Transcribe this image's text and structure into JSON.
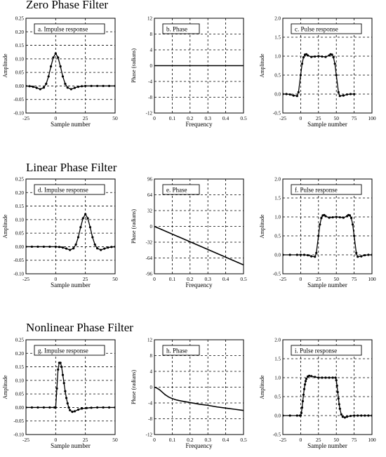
{
  "sections": [
    {
      "title": "Zero Phase Filter"
    },
    {
      "title": "Linear Phase Filter"
    },
    {
      "title": "Nonlinear Phase Filter"
    }
  ],
  "chart_data": [
    {
      "id": "a",
      "type": "scatter",
      "label": "a.  Impulse response",
      "xlabel": "Sample number",
      "ylabel": "Amplitude",
      "xlim": [
        -25,
        50
      ],
      "xticks": [
        "-25",
        "0",
        "25",
        "50"
      ],
      "ylim": [
        -0.1,
        0.25
      ],
      "yticks": [
        "-0.10",
        "-0.05",
        "0.00",
        "0.05",
        "0.10",
        "0.15",
        "0.20",
        "0.25"
      ],
      "grid": "dashed",
      "x": [
        -25,
        -22,
        -19,
        -16,
        -13,
        -10,
        -8,
        -6,
        -4,
        -2,
        0,
        2,
        4,
        6,
        8,
        10,
        13,
        16,
        19,
        22,
        25,
        30,
        35,
        40,
        45,
        50
      ],
      "y": [
        0.0,
        -0.001,
        -0.003,
        -0.007,
        -0.012,
        -0.006,
        0.008,
        0.035,
        0.072,
        0.105,
        0.12,
        0.105,
        0.072,
        0.035,
        0.008,
        -0.006,
        -0.012,
        -0.007,
        -0.003,
        -0.001,
        0.0,
        0.0,
        0.0,
        0.0,
        0.0,
        0.0
      ]
    },
    {
      "id": "b",
      "type": "line",
      "label": "b.  Phase",
      "xlabel": "Frequency",
      "ylabel": "Phase (radians)",
      "xlim": [
        0,
        0.5
      ],
      "xticks": [
        "0",
        "0.1",
        "0.2",
        "0.3",
        "0.4",
        "0.5"
      ],
      "ylim": [
        -12,
        12
      ],
      "yticks": [
        "-12",
        "-8",
        "-4",
        "0",
        "4",
        "8",
        "12"
      ],
      "grid": "dashed",
      "x": [
        0,
        0.5
      ],
      "y": [
        0,
        0
      ]
    },
    {
      "id": "c",
      "type": "scatter",
      "label": "c.  Pulse response",
      "xlabel": "Sample number",
      "ylabel": "Amplitude",
      "xlim": [
        -25,
        100
      ],
      "xticks": [
        "-25",
        "0",
        "25",
        "50",
        "75",
        "100"
      ],
      "ylim": [
        -0.5,
        2.0
      ],
      "yticks": [
        "-0.5",
        "0.0",
        "0.5",
        "1.0",
        "1.5",
        "2.0"
      ],
      "grid": "dashed",
      "x": [
        -25,
        -20,
        -15,
        -10,
        -5,
        -3,
        0,
        2,
        4,
        6,
        8,
        10,
        15,
        20,
        25,
        30,
        35,
        40,
        42,
        44,
        46,
        48,
        50,
        53,
        55,
        60,
        65,
        70,
        75
      ],
      "y": [
        0.0,
        0.0,
        -0.01,
        -0.04,
        -0.05,
        0.05,
        0.5,
        0.8,
        0.97,
        1.04,
        1.05,
        1.02,
        0.98,
        0.99,
        1.0,
        0.99,
        0.98,
        1.02,
        1.05,
        1.04,
        0.97,
        0.8,
        0.5,
        0.05,
        -0.05,
        -0.04,
        -0.01,
        0.0,
        0.0
      ]
    },
    {
      "id": "d",
      "type": "scatter",
      "label": "d.  Impulse response",
      "xlabel": "Sample number",
      "ylabel": "Amplitude",
      "xlim": [
        -25,
        50
      ],
      "xticks": [
        "-25",
        "0",
        "25",
        "50"
      ],
      "ylim": [
        -0.1,
        0.25
      ],
      "yticks": [
        "-0.10",
        "-0.05",
        "0.00",
        "0.05",
        "0.10",
        "0.15",
        "0.20",
        "0.25"
      ],
      "grid": "dashed",
      "x": [
        -25,
        -20,
        -15,
        -10,
        -5,
        0,
        3,
        6,
        9,
        12,
        15,
        17,
        19,
        21,
        23,
        25,
        27,
        29,
        31,
        33,
        35,
        38,
        41,
        44,
        47,
        50
      ],
      "y": [
        0.0,
        0.0,
        0.0,
        0.0,
        0.0,
        0.0,
        -0.001,
        -0.003,
        -0.007,
        -0.012,
        -0.006,
        0.008,
        0.035,
        0.072,
        0.105,
        0.12,
        0.105,
        0.072,
        0.035,
        0.008,
        -0.006,
        -0.012,
        -0.007,
        -0.003,
        -0.001,
        0.0
      ]
    },
    {
      "id": "e",
      "type": "line",
      "label": "e.  Phase",
      "xlabel": "Frequency",
      "ylabel": "Phase (radians)",
      "xlim": [
        0,
        0.5
      ],
      "xticks": [
        "0",
        "0.1",
        "0.2",
        "0.3",
        "0.4",
        "0.5"
      ],
      "ylim": [
        -96,
        96
      ],
      "yticks": [
        "-96",
        "-64",
        "-32",
        "0",
        "32",
        "64",
        "96"
      ],
      "grid": "dashed",
      "x": [
        0,
        0.5
      ],
      "y": [
        0,
        -78
      ]
    },
    {
      "id": "f",
      "type": "scatter",
      "label": "f.  Pulse response",
      "xlabel": "Sample number",
      "ylabel": "Amplitude",
      "xlim": [
        -25,
        100
      ],
      "xticks": [
        "-25",
        "0",
        "25",
        "50",
        "75",
        "100"
      ],
      "ylim": [
        -0.5,
        2.0
      ],
      "yticks": [
        "-0.5",
        "0.0",
        "0.5",
        "1.0",
        "1.5",
        "2.0"
      ],
      "grid": "dashed",
      "x": [
        -25,
        -15,
        -5,
        0,
        5,
        10,
        15,
        20,
        22,
        25,
        27,
        29,
        31,
        33,
        35,
        40,
        45,
        50,
        55,
        60,
        65,
        67,
        69,
        71,
        73,
        75,
        78,
        80,
        85,
        90,
        95,
        100
      ],
      "y": [
        0.0,
        0.0,
        0.0,
        0.0,
        0.0,
        -0.01,
        -0.04,
        -0.05,
        0.05,
        0.5,
        0.8,
        0.97,
        1.04,
        1.05,
        1.02,
        0.98,
        0.99,
        1.0,
        0.99,
        0.98,
        1.02,
        1.05,
        1.04,
        0.97,
        0.8,
        0.5,
        0.05,
        -0.05,
        -0.04,
        -0.01,
        0.0,
        0.0
      ]
    },
    {
      "id": "g",
      "type": "scatter",
      "label": "g.  Impulse response",
      "xlabel": "Sample number",
      "ylabel": "Amplitude",
      "xlim": [
        -25,
        50
      ],
      "xticks": [
        "-25",
        "0",
        "25",
        "50"
      ],
      "ylim": [
        -0.1,
        0.25
      ],
      "yticks": [
        "-0.10",
        "-0.05",
        "0.00",
        "0.05",
        "0.10",
        "0.15",
        "0.20",
        "0.25"
      ],
      "grid": "dashed",
      "x": [
        -25,
        -20,
        -15,
        -10,
        -5,
        -1,
        0,
        1,
        2,
        3,
        4,
        5,
        6,
        7,
        8,
        9,
        10,
        11,
        12,
        14,
        16,
        19,
        22,
        26,
        30,
        35,
        40,
        45,
        50
      ],
      "y": [
        0.0,
        0.0,
        0.0,
        0.0,
        0.0,
        0.0,
        0.0,
        0.07,
        0.14,
        0.165,
        0.165,
        0.15,
        0.12,
        0.09,
        0.06,
        0.035,
        0.015,
        0.0,
        -0.01,
        -0.016,
        -0.014,
        -0.008,
        -0.004,
        -0.002,
        -0.001,
        0.0,
        0.0,
        0.0,
        0.0
      ]
    },
    {
      "id": "h",
      "type": "line",
      "label": "h.  Phase",
      "xlabel": "Frequency",
      "ylabel": "Phase (radians)",
      "xlim": [
        0,
        0.5
      ],
      "xticks": [
        "0",
        "0.1",
        "0.2",
        "0.3",
        "0.4",
        "0.5"
      ],
      "ylim": [
        -12,
        12
      ],
      "yticks": [
        "-12",
        "-8",
        "-4",
        "0",
        "4",
        "8",
        "12"
      ],
      "grid": "dashed",
      "x": [
        0,
        0.01,
        0.02,
        0.03,
        0.04,
        0.05,
        0.06,
        0.07,
        0.08,
        0.1,
        0.12,
        0.15,
        0.2,
        0.25,
        0.3,
        0.35,
        0.4,
        0.45,
        0.5
      ],
      "y": [
        0,
        -0.15,
        -0.4,
        -0.7,
        -1.1,
        -1.5,
        -1.9,
        -2.2,
        -2.5,
        -2.9,
        -3.2,
        -3.5,
        -3.9,
        -4.3,
        -4.6,
        -5.0,
        -5.3,
        -5.6,
        -5.9
      ]
    },
    {
      "id": "i",
      "type": "scatter",
      "label": "i.  Pulse response",
      "xlabel": "Sample number",
      "ylabel": "Amplitude",
      "xlim": [
        -25,
        100
      ],
      "xticks": [
        "-25",
        "0",
        "25",
        "50",
        "75",
        "100"
      ],
      "ylim": [
        -0.5,
        2.0
      ],
      "yticks": [
        "-0.5",
        "0.0",
        "0.5",
        "1.0",
        "1.5",
        "2.0"
      ],
      "grid": "dashed",
      "x": [
        -25,
        -15,
        -5,
        -1,
        0,
        1,
        2,
        3,
        4,
        5,
        6,
        7,
        8,
        10,
        12,
        15,
        20,
        25,
        30,
        35,
        40,
        45,
        49,
        50,
        51,
        52,
        53,
        54,
        55,
        57,
        59,
        62,
        65,
        70,
        75,
        80,
        85,
        90,
        95,
        100
      ],
      "y": [
        0.0,
        0.0,
        0.0,
        0.0,
        0.0,
        0.07,
        0.21,
        0.38,
        0.55,
        0.7,
        0.82,
        0.91,
        0.97,
        1.03,
        1.05,
        1.04,
        1.02,
        1.0,
        1.0,
        1.0,
        1.0,
        1.0,
        1.0,
        0.93,
        0.79,
        0.62,
        0.45,
        0.3,
        0.18,
        0.03,
        -0.03,
        -0.05,
        -0.03,
        -0.01,
        0.0,
        0.0,
        0.0,
        0.0,
        0.0,
        0.0
      ]
    }
  ]
}
